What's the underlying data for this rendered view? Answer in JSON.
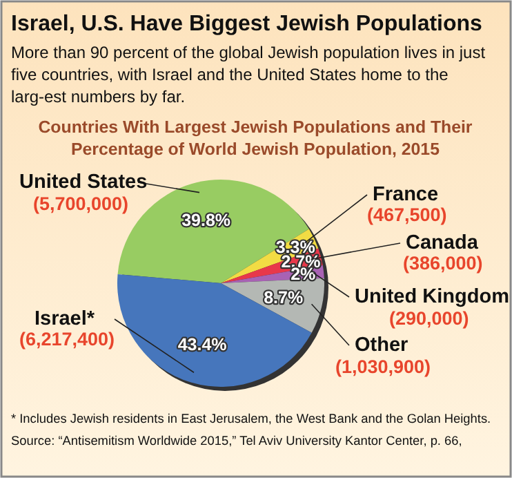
{
  "chart_data": {
    "type": "pie",
    "title": "Israel, U.S. Have Biggest Jewish Populations",
    "subtitle": "More than 90 percent of the global Jewish population lives in just five countries, with Israel and the United States home to the larg-est numbers by far.",
    "xlabel": "Countries With Largest Jewish Populations and Their Percentage of World Jewish Population, 2015",
    "categories": [
      "United States",
      "France",
      "Canada",
      "United Kingdom",
      "Other",
      "Israel*"
    ],
    "values": [
      39.8,
      3.3,
      2.7,
      2,
      8.7,
      43.4
    ],
    "value_labels": [
      "39.8%",
      "3.3%",
      "2.7%",
      "2%",
      "8.7%",
      "43.4%"
    ],
    "colors": [
      "#98cc62",
      "#f2dc44",
      "#e8384a",
      "#a862b4",
      "#b4b8b4",
      "#4676bc"
    ],
    "annotations": [
      "(5,700,000)",
      "(467,500)",
      "(386,000)",
      "(290,000)",
      "(1,030,900)",
      "(6,217,400)",
      "* Includes Jewish residents in East Jerusalem, the West Bank and the Golan Heights.",
      "Source: “Antisemitism Worldwide 2015,” Tel Aviv University Kantor Center, p. 66,"
    ]
  }
}
